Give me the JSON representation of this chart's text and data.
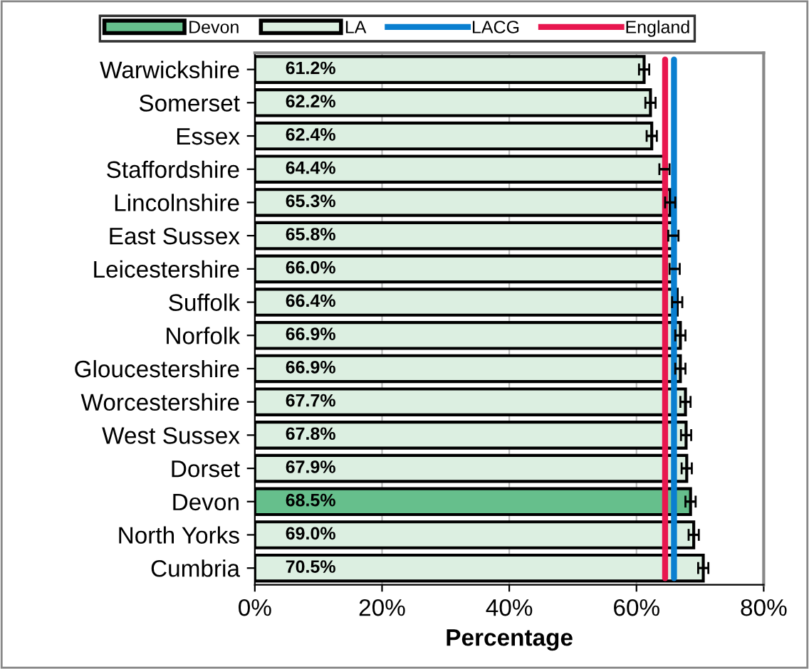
{
  "chart_data": {
    "type": "bar",
    "orientation": "horizontal",
    "xlabel": "Percentage",
    "categories": [
      "Warwickshire",
      "Somerset",
      "Essex",
      "Staffordshire",
      "Lincolnshire",
      "East Sussex",
      "Leicestershire",
      "Suffolk",
      "Norfolk",
      "Gloucestershire",
      "Worcestershire",
      "West Sussex",
      "Dorset",
      "Devon",
      "North Yorks",
      "Cumbria"
    ],
    "series": [
      {
        "name": "Devon",
        "color": "#66bf8c",
        "values": [
          null,
          null,
          null,
          null,
          null,
          null,
          null,
          null,
          null,
          null,
          null,
          null,
          null,
          68.5,
          null,
          null
        ],
        "errors": [
          null,
          null,
          null,
          null,
          null,
          null,
          null,
          null,
          null,
          null,
          null,
          null,
          null,
          0.8,
          null,
          null
        ],
        "value_labels": [
          null,
          null,
          null,
          null,
          null,
          null,
          null,
          null,
          null,
          null,
          null,
          null,
          null,
          "68.5%",
          null,
          null
        ]
      },
      {
        "name": "LA",
        "color": "#dcefe1",
        "values": [
          61.2,
          62.2,
          62.4,
          64.4,
          65.3,
          65.8,
          66.0,
          66.4,
          66.9,
          66.9,
          67.7,
          67.8,
          67.9,
          null,
          69.0,
          70.5
        ],
        "errors": [
          0.8,
          0.8,
          0.8,
          0.8,
          0.8,
          0.8,
          0.8,
          0.8,
          0.8,
          0.8,
          0.8,
          0.8,
          0.8,
          null,
          0.8,
          0.8
        ],
        "value_labels": [
          "61.2%",
          "62.2%",
          "62.4%",
          "64.4%",
          "65.3%",
          "65.8%",
          "66.0%",
          "66.4%",
          "66.9%",
          "66.9%",
          "67.7%",
          "67.8%",
          "67.9%",
          null,
          "69.0%",
          "70.5%"
        ]
      }
    ],
    "ref_lines": [
      {
        "axis": "x",
        "value": 65.9,
        "label": "LACG",
        "color": "#0a7fd0"
      },
      {
        "axis": "x",
        "value": 64.5,
        "label": "England",
        "color": "#e8174f"
      }
    ],
    "xlim": [
      0,
      80
    ],
    "xticks": [
      {
        "value": 0,
        "label": "0%"
      },
      {
        "value": 20,
        "label": "20%"
      },
      {
        "value": 40,
        "label": "40%"
      },
      {
        "value": 60,
        "label": "60%"
      },
      {
        "value": 80,
        "label": "80%"
      }
    ],
    "grid": "x",
    "legend": "top"
  }
}
